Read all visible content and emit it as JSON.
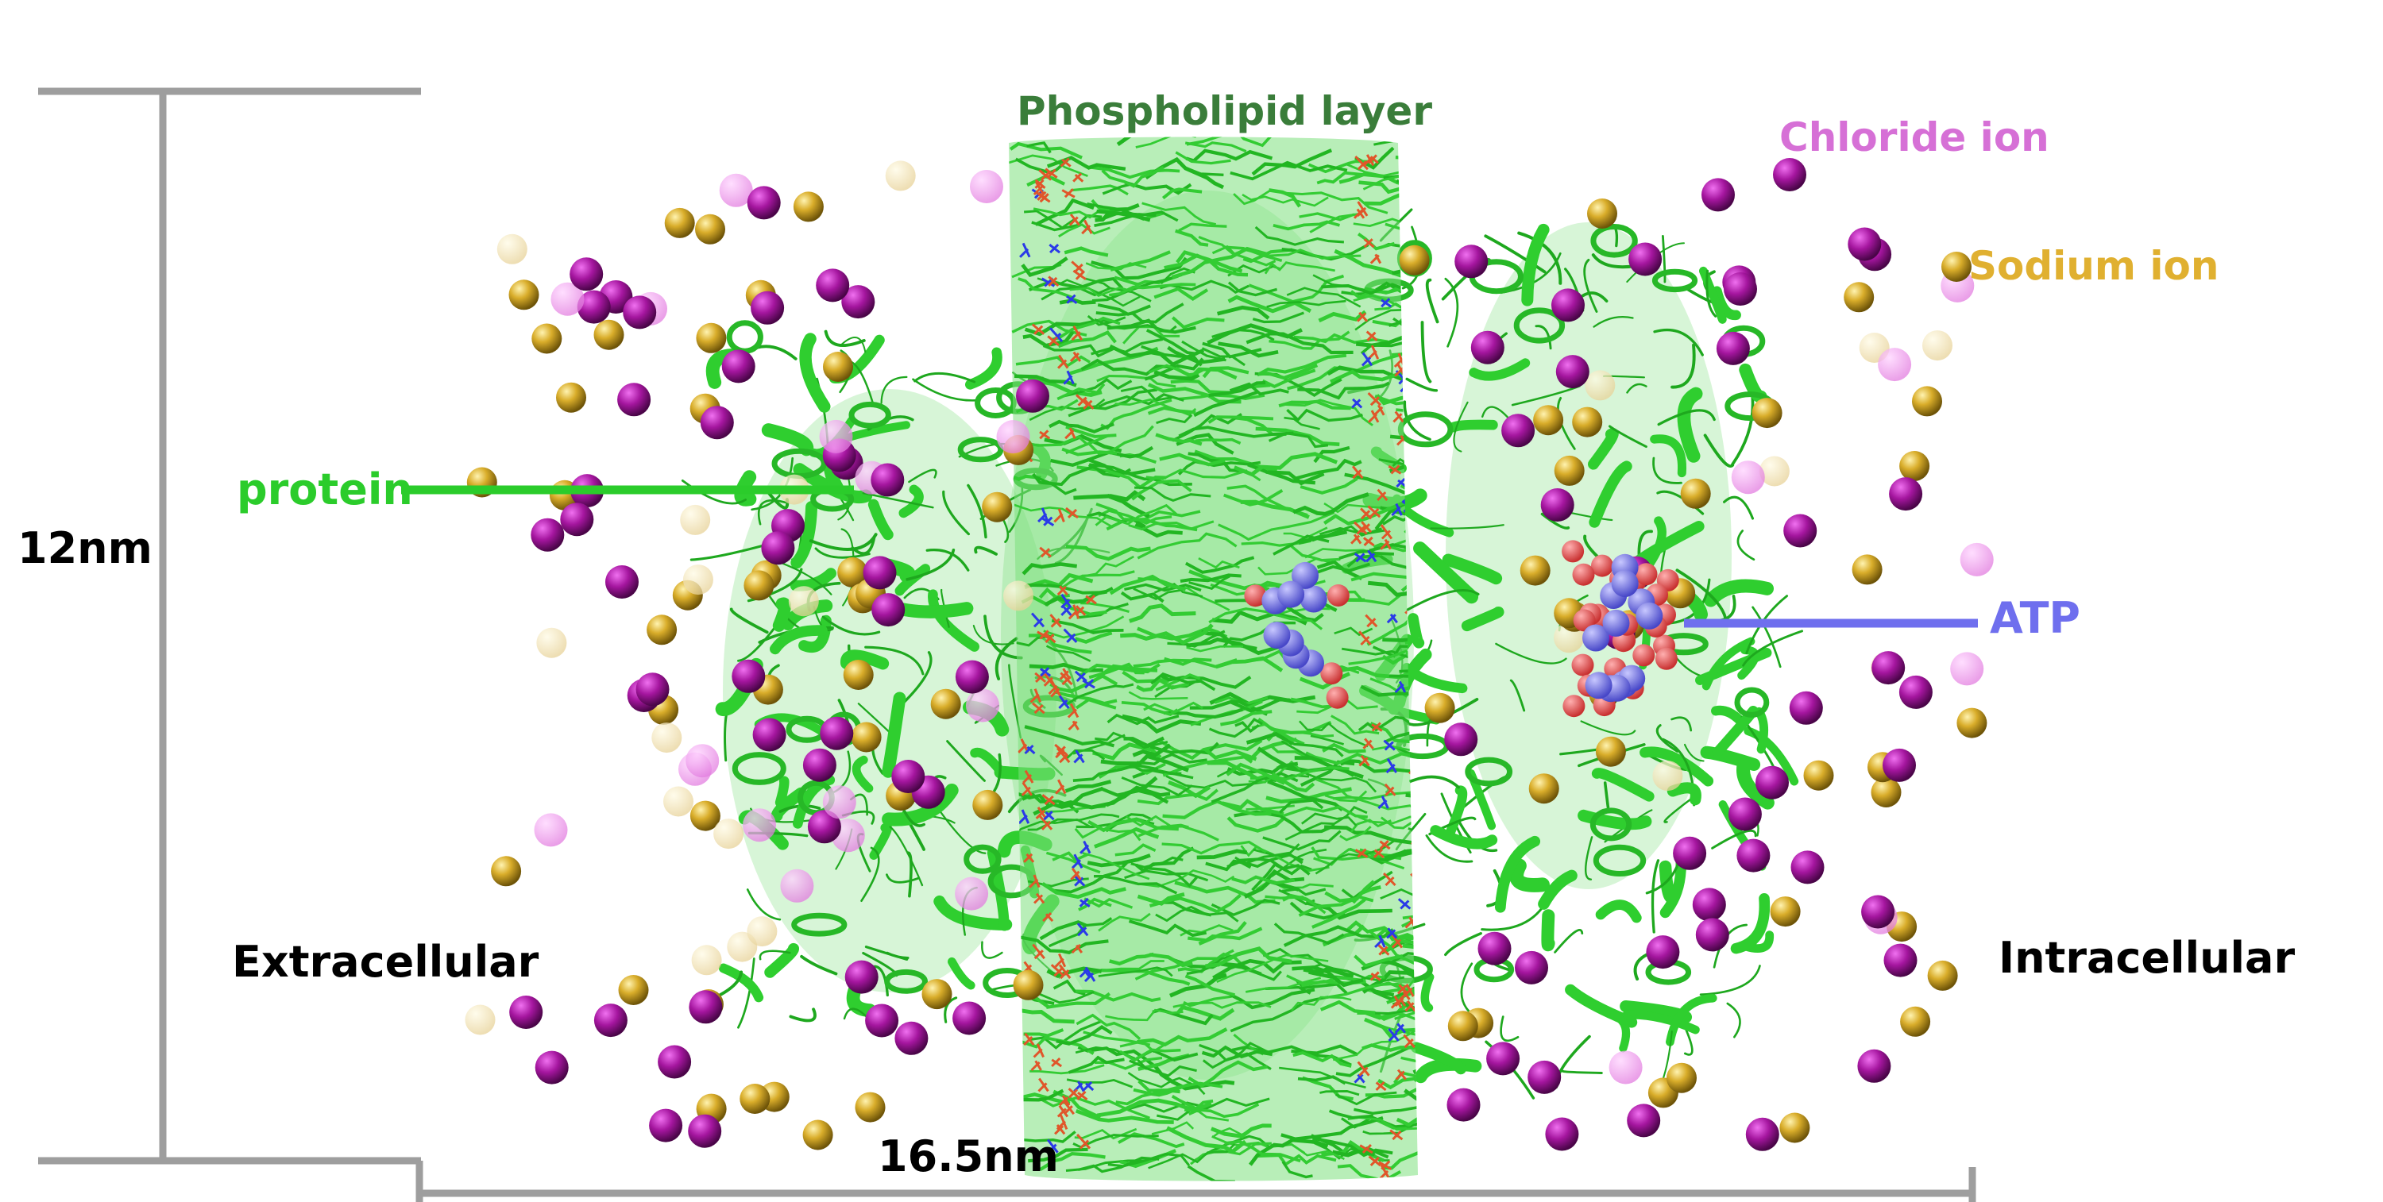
{
  "labels": {
    "height": "12nm",
    "width": "16.5nm",
    "phospholipid": "Phospholipid layer",
    "chloride": "Chloride ion",
    "sodium": "Sodium ion",
    "protein": "protein",
    "atp": "ATP",
    "extracellular": "Extracellular",
    "intracellular": "Intracellular"
  },
  "colors": {
    "membrane": "#33cc33",
    "membrane_dark": "#1fa51f",
    "phospholipid_label": "#3a7d3a",
    "chloride": "#a0129f",
    "chloride_label": "#d670d6",
    "sodium": "#c8a020",
    "sodium_label": "#e0b030",
    "protein_label": "#2bcc2b",
    "atp": "#6f6fee",
    "atp_oxygen": "#e85050",
    "scale_bar": "#9e9e9e",
    "text": "#000000"
  }
}
